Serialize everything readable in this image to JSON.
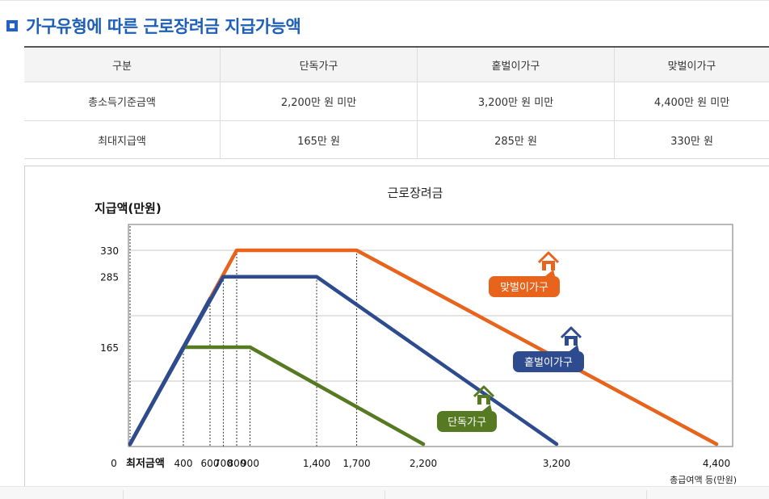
{
  "page": {
    "title": "가구유형에 따른 근로장려금 지급가능액"
  },
  "table": {
    "header": [
      "구분",
      "단독가구",
      "홑벌이가구",
      "맞벌이가구"
    ],
    "rows": [
      [
        "총소득기준금액",
        "2,200만 원 미만",
        "3,200만 원 미만",
        "4,400만 원 미만"
      ],
      [
        "최대지급액",
        "165만 원",
        "285만 원",
        "330만 원"
      ]
    ]
  },
  "chart_data": {
    "type": "line",
    "title": "근로장려금",
    "ylabel": "지급액(만원)",
    "xlabel": "총급여액 등(만원)",
    "xlim": [
      0,
      4400
    ],
    "ylim": [
      0,
      380
    ],
    "x_ticks": [
      "0",
      "400",
      "600",
      "700",
      "800",
      "900",
      "1,400",
      "1,700",
      "2,200",
      "3,200",
      "4,400"
    ],
    "x_tick_values": [
      0,
      400,
      600,
      700,
      800,
      900,
      1400,
      1700,
      2200,
      3200,
      4400
    ],
    "x_min_label": "최저금액",
    "y_ticks": [
      165,
      285,
      330
    ],
    "y_tick_labels": [
      "165",
      "285",
      "330"
    ],
    "grid": true,
    "series": [
      {
        "name": "맞벌이가구",
        "color": "#e8631c",
        "x": [
          0,
          800,
          1700,
          4400
        ],
        "y": [
          0,
          330,
          330,
          0
        ]
      },
      {
        "name": "홑벌이가구",
        "color": "#2d4b8e",
        "x": [
          0,
          700,
          1400,
          3200
        ],
        "y": [
          0,
          285,
          285,
          0
        ]
      },
      {
        "name": "단독가구",
        "color": "#557a22",
        "x": [
          0,
          400,
          900,
          2200
        ],
        "y": [
          0,
          165,
          165,
          0
        ]
      }
    ]
  }
}
